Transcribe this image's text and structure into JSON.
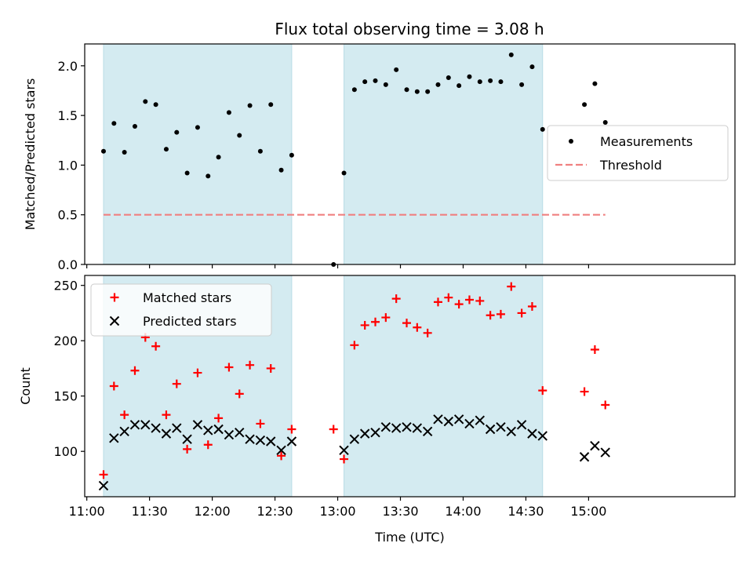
{
  "title": "Flux total observing time = 3.08 h",
  "colors": {
    "shade": "#d4ebf1",
    "shade_edge": "#b9dce6",
    "measurement": "#000000",
    "threshold": "#f08080",
    "matched": "#ff0000",
    "predicted": "#000000"
  },
  "chart_data": [
    {
      "type": "scatter",
      "name": "ratio-panel",
      "ylabel": "Matched/Predicted stars",
      "ylim": [
        0,
        2.22
      ],
      "yticks": [
        0.0,
        0.5,
        1.0,
        1.5,
        2.0
      ],
      "ytick_labels": [
        "0.0",
        "0.5",
        "1.0",
        "1.5",
        "2.0"
      ],
      "xlim": [
        "10:59",
        "16:10"
      ],
      "shaded_regions": [
        [
          "11:08",
          "12:38"
        ],
        [
          "13:03",
          "14:38"
        ]
      ],
      "legend": {
        "placement": "center-right",
        "entries": [
          {
            "label": "Measurements",
            "marker": "dot"
          },
          {
            "label": "Threshold",
            "marker": "dashed-line"
          }
        ]
      },
      "threshold": {
        "y": 0.5,
        "x_range": [
          "11:08",
          "15:08"
        ]
      },
      "series": [
        {
          "name": "Measurements",
          "x": [
            "11:08",
            "11:13",
            "11:18",
            "11:23",
            "11:28",
            "11:33",
            "11:38",
            "11:43",
            "11:48",
            "11:53",
            "11:58",
            "12:03",
            "12:08",
            "12:13",
            "12:18",
            "12:23",
            "12:28",
            "12:33",
            "12:38",
            "12:58",
            "13:03",
            "13:08",
            "13:13",
            "13:18",
            "13:23",
            "13:28",
            "13:33",
            "13:38",
            "13:43",
            "13:48",
            "13:53",
            "13:58",
            "14:03",
            "14:08",
            "14:13",
            "14:18",
            "14:23",
            "14:28",
            "14:33",
            "14:38",
            "14:58",
            "15:03",
            "15:08"
          ],
          "y": [
            1.14,
            1.42,
            1.13,
            1.39,
            1.64,
            1.61,
            1.16,
            1.33,
            0.92,
            1.38,
            0.89,
            1.08,
            1.53,
            1.3,
            1.6,
            1.14,
            1.61,
            0.95,
            1.1,
            0.0,
            0.92,
            1.76,
            1.84,
            1.85,
            1.81,
            1.96,
            1.76,
            1.74,
            1.74,
            1.81,
            1.88,
            1.8,
            1.89,
            1.84,
            1.85,
            1.84,
            2.11,
            1.81,
            1.99,
            1.36,
            1.61,
            1.82,
            1.43
          ]
        }
      ]
    },
    {
      "type": "scatter",
      "name": "count-panel",
      "ylabel": "Count",
      "xlabel": "Time (UTC)",
      "ylim": [
        59,
        259
      ],
      "yticks": [
        100,
        150,
        200,
        250
      ],
      "ytick_labels": [
        "100",
        "150",
        "200",
        "250"
      ],
      "xlim": [
        "10:59",
        "16:10"
      ],
      "xticks": [
        "11:00",
        "11:30",
        "12:00",
        "12:30",
        "13:00",
        "13:30",
        "14:00",
        "14:30",
        "15:00"
      ],
      "xtick_labels": [
        "11:00",
        "11:30",
        "12:00",
        "12:30",
        "13:00",
        "13:30",
        "14:00",
        "14:30",
        "15:00"
      ],
      "shaded_regions": [
        [
          "11:08",
          "12:38"
        ],
        [
          "13:03",
          "14:38"
        ]
      ],
      "legend": {
        "placement": "top-left",
        "entries": [
          {
            "label": "Matched stars",
            "marker": "plus"
          },
          {
            "label": "Predicted stars",
            "marker": "x"
          }
        ]
      },
      "series": [
        {
          "name": "Matched stars",
          "x": [
            "11:08",
            "11:13",
            "11:18",
            "11:23",
            "11:28",
            "11:33",
            "11:38",
            "11:43",
            "11:48",
            "11:53",
            "11:58",
            "12:03",
            "12:08",
            "12:13",
            "12:18",
            "12:23",
            "12:28",
            "12:33",
            "12:38",
            "12:58",
            "13:03",
            "13:08",
            "13:13",
            "13:18",
            "13:23",
            "13:28",
            "13:33",
            "13:38",
            "13:43",
            "13:48",
            "13:53",
            "13:58",
            "14:03",
            "14:08",
            "14:13",
            "14:18",
            "14:23",
            "14:28",
            "14:33",
            "14:38",
            "14:58",
            "15:03",
            "15:08"
          ],
          "y": [
            79,
            159,
            133,
            173,
            203,
            195,
            133,
            161,
            102,
            171,
            106,
            130,
            176,
            152,
            178,
            125,
            175,
            96,
            120,
            120,
            93,
            196,
            214,
            217,
            221,
            238,
            216,
            212,
            207,
            235,
            239,
            233,
            237,
            236,
            223,
            224,
            249,
            225,
            231,
            155,
            154,
            192,
            142
          ]
        },
        {
          "name": "Predicted stars",
          "x": [
            "11:08",
            "11:13",
            "11:18",
            "11:23",
            "11:28",
            "11:33",
            "11:38",
            "11:43",
            "11:48",
            "11:53",
            "11:58",
            "12:03",
            "12:08",
            "12:13",
            "12:18",
            "12:23",
            "12:28",
            "12:33",
            "12:38",
            "13:03",
            "13:08",
            "13:13",
            "13:18",
            "13:23",
            "13:28",
            "13:33",
            "13:38",
            "13:43",
            "13:48",
            "13:53",
            "13:58",
            "14:03",
            "14:08",
            "14:13",
            "14:18",
            "14:23",
            "14:28",
            "14:33",
            "14:38",
            "14:58",
            "15:03",
            "15:08"
          ],
          "y": [
            69,
            112,
            118,
            124,
            124,
            121,
            116,
            121,
            111,
            124,
            119,
            120,
            115,
            117,
            111,
            110,
            109,
            101,
            109,
            101,
            111,
            116,
            117,
            122,
            121,
            122,
            121,
            118,
            129,
            127,
            129,
            125,
            128,
            120,
            122,
            118,
            124,
            116,
            114,
            95,
            105,
            99
          ]
        }
      ]
    }
  ]
}
